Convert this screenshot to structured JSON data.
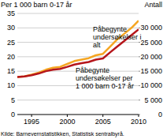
{
  "chart_data": {
    "type": "line",
    "y_label": "Per 1 000 barn 0-17 år",
    "y2_label": "Antall",
    "source": "Kilde: Barnevernstatistikken, Statistisk sentralbyrå.",
    "x": [
      1993,
      1994,
      1995,
      1996,
      1997,
      1998,
      1999,
      2000,
      2001,
      2002,
      2003,
      2004,
      2005,
      2006,
      2007,
      2008,
      2009,
      2010
    ],
    "xlim": [
      1993,
      2010
    ],
    "xticks": [
      1995,
      2000,
      2005,
      2010
    ],
    "ylim": [
      0,
      35
    ],
    "yticks": [
      0,
      5,
      10,
      15,
      20,
      25,
      30,
      35
    ],
    "y2lim": [
      0,
      35000
    ],
    "y2ticks": [
      0,
      {
        "value": 5000,
        "label": "5 000"
      },
      {
        "value": 10000,
        "label": "10 000"
      },
      {
        "value": 15000,
        "label": "15 000"
      },
      {
        "value": 20000,
        "label": "20 000"
      },
      {
        "value": 25000,
        "label": "25 000"
      },
      {
        "value": 30000,
        "label": "30 000"
      }
    ],
    "grid": true,
    "series": [
      {
        "name": "Påbegynte undersøkelser i alt",
        "color": "#f5a623",
        "axis": "y2",
        "values": [
          13000,
          13200,
          13800,
          14500,
          15500,
          16200,
          16500,
          17500,
          18500,
          19000,
          19500,
          20500,
          21000,
          23500,
          26000,
          28000,
          30000,
          32500
        ]
      },
      {
        "name": "Påbegynte undersøkelser per 1 000 barn 0-17 år",
        "color": "#b5161b",
        "values": [
          13,
          13.2,
          13.6,
          14.2,
          15,
          15.5,
          15.8,
          16.5,
          17.3,
          17.8,
          18.2,
          19,
          19.4,
          21.5,
          23.5,
          25.5,
          27.5,
          29.5
        ]
      }
    ]
  }
}
